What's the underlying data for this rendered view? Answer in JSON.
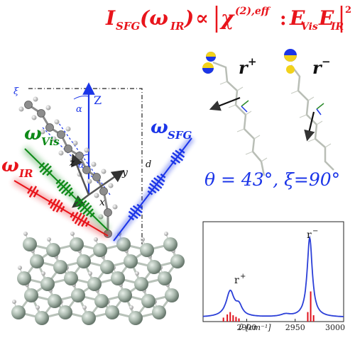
{
  "equation": {
    "lhs_I": "I",
    "lhs_sub": "SFG",
    "lhs_arg": "(ω",
    "lhs_arg_sub": "IR",
    "lhs_close": ")",
    "prop": "∝",
    "chi": "χ",
    "chi_sup": "(2),eff",
    "colon": ":",
    "e_vis": "E",
    "e_vis_sub": "Vis",
    "e_ir": "E",
    "e_ir_sub": "IR",
    "power": "2"
  },
  "modes": {
    "r_plus": "r",
    "r_plus_sup": "+",
    "r_minus": "r",
    "r_minus_sup": "−"
  },
  "angles_text": "θ = 43°,  ξ=90°",
  "beams": {
    "vis": "ω",
    "vis_sub": "Vis",
    "ir": "ω",
    "ir_sub": "IR",
    "sfg": "ω",
    "sfg_sub": "SFG"
  },
  "axes": {
    "Z": "Z",
    "z": "z",
    "y": "y",
    "x": "x",
    "alpha": "α",
    "theta": "θ",
    "xi": "ξ",
    "d": "d"
  },
  "inset": {
    "x_axis_label": "ν̃  [cm⁻¹]",
    "ticks": [
      "2900",
      "2950",
      "3000"
    ],
    "peak_plus": "r",
    "peak_plus_sup": "+",
    "peak_minus": "r",
    "peak_minus_sup": "−"
  },
  "colors": {
    "red": "#e8141b",
    "blue": "#1b35e8",
    "green": "#0e8a18",
    "spectrum": "#2b3fd8",
    "stick": "#e0101a"
  }
}
